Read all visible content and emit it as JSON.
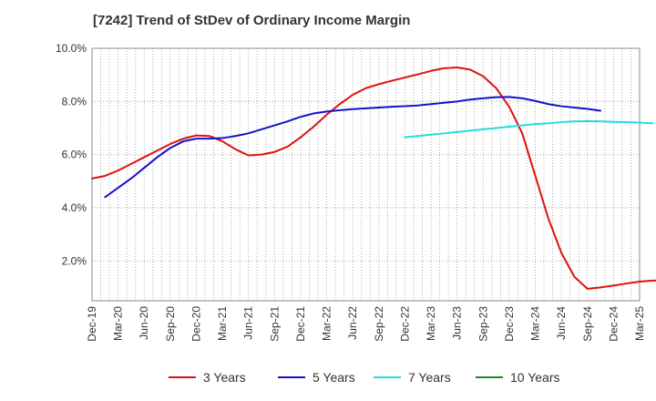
{
  "chart_data": {
    "type": "line",
    "title": "[7242]  Trend of StDev of Ordinary Income Margin",
    "x_labels": [
      "Dec-19",
      "Mar-20",
      "Jun-20",
      "Sep-20",
      "Dec-20",
      "Mar-21",
      "Jun-21",
      "Sep-21",
      "Dec-21",
      "Mar-22",
      "Jun-22",
      "Sep-22",
      "Dec-22",
      "Mar-23",
      "Jun-23",
      "Sep-23",
      "Dec-23",
      "Mar-24",
      "Jun-24",
      "Sep-24",
      "Dec-24",
      "Mar-25"
    ],
    "y_ticks": [
      "2.0%",
      "4.0%",
      "6.0%",
      "8.0%",
      "10.0%"
    ],
    "y_tick_values": [
      2,
      4,
      6,
      8,
      10
    ],
    "ylim": [
      0.5,
      10
    ],
    "grid": true,
    "legend_position": "bottom",
    "series": [
      {
        "name": "3 Years",
        "color": "#dd1111",
        "values": [
          5.1,
          5.2,
          5.4,
          5.65,
          5.9,
          6.15,
          6.4,
          6.6,
          6.72,
          6.7,
          6.5,
          6.2,
          5.97,
          6.0,
          6.1,
          6.3,
          6.65,
          7.05,
          7.5,
          7.9,
          8.25,
          8.5,
          8.65,
          8.78,
          8.9,
          9.02,
          9.15,
          9.25,
          9.28,
          9.2,
          8.95,
          8.5,
          7.8,
          6.8,
          5.2,
          3.6,
          2.3,
          1.4,
          0.95,
          1.0,
          1.07,
          1.15,
          1.22,
          1.26,
          1.25,
          1.2
        ]
      },
      {
        "name": "5 Years",
        "color": "#1111cc",
        "values": [
          null,
          4.4,
          4.75,
          5.1,
          5.5,
          5.9,
          6.25,
          6.5,
          6.6,
          6.6,
          6.62,
          6.7,
          6.8,
          6.95,
          7.1,
          7.25,
          7.42,
          7.55,
          7.62,
          7.67,
          7.71,
          7.74,
          7.77,
          7.8,
          7.82,
          7.85,
          7.9,
          7.95,
          8.0,
          8.07,
          8.12,
          8.16,
          8.17,
          8.12,
          8.02,
          7.9,
          7.82,
          7.77,
          7.72,
          7.65
        ]
      },
      {
        "name": "7 Years",
        "color": "#22dddd",
        "values": [
          6.65,
          6.7,
          6.75,
          6.8,
          6.85,
          6.9,
          6.95,
          7.0,
          7.05,
          7.1,
          7.15,
          7.18,
          7.22,
          7.25,
          7.26,
          7.25,
          7.23,
          7.22,
          7.2,
          7.18
        ]
      },
      {
        "name": "10 Years",
        "color": "#228822",
        "values": []
      }
    ]
  }
}
